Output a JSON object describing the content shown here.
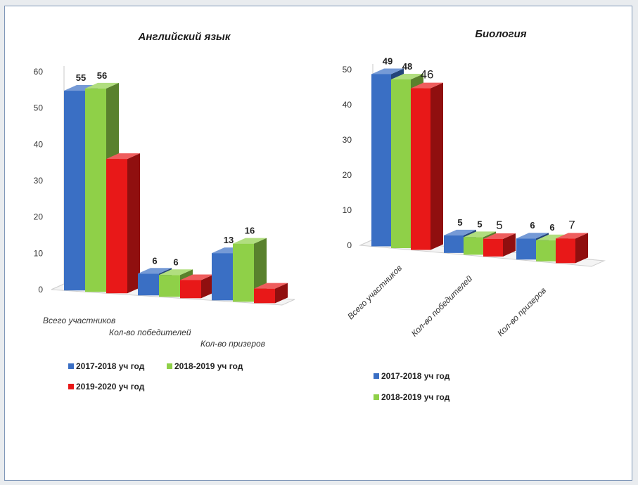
{
  "chart_data": [
    {
      "type": "bar",
      "title": "Английский язык",
      "categories": [
        "Всего участников",
        "Кол-во победителей",
        "Кол-во призеров"
      ],
      "series": [
        {
          "name": "2017-2018 уч год",
          "color": "#3a6fc4",
          "values": [
            55,
            6,
            13
          ]
        },
        {
          "name": "2018-2019 уч год",
          "color": "#8fd048",
          "values": [
            56,
            6,
            16
          ]
        },
        {
          "name": "2019-2020 уч год",
          "color": "#e81818",
          "values": [
            37,
            5,
            4
          ]
        }
      ],
      "data_labels": [
        [
          "55",
          "6",
          "13"
        ],
        [
          "56",
          "6",
          "16"
        ],
        [
          "",
          "",
          ""
        ]
      ],
      "y_ticks": [
        "0",
        "10",
        "20",
        "30",
        "40",
        "50",
        "60"
      ],
      "ylim": [
        0,
        60
      ],
      "legend": "bottom"
    },
    {
      "type": "bar",
      "title": "Биология",
      "categories": [
        "Всего участников",
        "Кол-во победителей",
        "Кол-во призеров"
      ],
      "series": [
        {
          "name": "2017-2018 уч год",
          "color": "#3a6fc4",
          "values": [
            49,
            5,
            6
          ]
        },
        {
          "name": "2018-2019 уч год",
          "color": "#8fd048",
          "values": [
            48,
            5,
            6
          ]
        },
        {
          "name": "",
          "color": "#e81818",
          "values": [
            46,
            5,
            7
          ]
        }
      ],
      "data_labels": [
        [
          "49",
          "5",
          "6"
        ],
        [
          "48",
          "5",
          "6"
        ],
        [
          "46",
          "5",
          "7"
        ]
      ],
      "y_ticks": [
        "0",
        "10",
        "20",
        "30",
        "40",
        "50"
      ],
      "ylim": [
        0,
        50
      ],
      "legend": "bottom"
    }
  ]
}
